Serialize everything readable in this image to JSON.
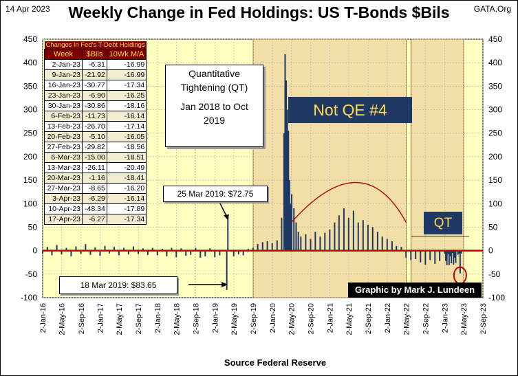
{
  "header": {
    "date": "14 Apr 2023",
    "site": "GATA.Org",
    "title": "Weekly Change in Fed Holdings:  US T-Bonds $Bils"
  },
  "source": "Source  Federal Reserve",
  "table": {
    "caption": "Changes in Fed's T-Debt Holdings",
    "headers": [
      "Week",
      "$Bils",
      "10Wk M/A"
    ],
    "rows": [
      [
        "2-Jan-23",
        "-6.31",
        "-16.99"
      ],
      [
        "9-Jan-23",
        "-21.92",
        "-16.99"
      ],
      [
        "16-Jan-23",
        "-30.77",
        "-17.34"
      ],
      [
        "23-Jan-23",
        "-6.90",
        "-16.25"
      ],
      [
        "30-Jan-23",
        "-30.86",
        "-18.16"
      ],
      [
        "6-Feb-23",
        "-11.73",
        "-16.14"
      ],
      [
        "13-Feb-23",
        "-26.70",
        "-17.14"
      ],
      [
        "20-Feb-23",
        "-5.10",
        "-16.05"
      ],
      [
        "27-Feb-23",
        "-29.82",
        "-18.56"
      ],
      [
        "6-Mar-23",
        "-15.00",
        "-18.51"
      ],
      [
        "13-Mar-23",
        "-26.11",
        "-20.49"
      ],
      [
        "20-Mar-23",
        "-1.16",
        "-18.41"
      ],
      [
        "27-Mar-23",
        "-8.65",
        "-16.20"
      ],
      [
        "3-Apr-23",
        "-6.29",
        "-16.14"
      ],
      [
        "10-Apr-23",
        "-48.34",
        "-17.89"
      ],
      [
        "17-Apr-23",
        "-6.27",
        "-17.34"
      ]
    ]
  },
  "annotations": {
    "qt_box": [
      "Quantitative",
      "Tightening (QT)",
      "Jan 2018 to Oct",
      "2019"
    ],
    "not_qe": "Not QE #4",
    "qt": "QT",
    "peak_2019": "25 Mar 2019:  $72.75",
    "low_2019": "18 Mar 2019:  $83.65",
    "credit": "Graphic by Mark J. Lundeen"
  },
  "colors": {
    "plot_background": "#ffffc0",
    "shaded_region": "#f2dfa8",
    "bars": "#1f3864",
    "zero_line": "#c00000",
    "trend_arc": "#b01010",
    "banner": "#1f3864",
    "banner_text": "#ffd84d",
    "table_header": "#7a0000"
  },
  "chart_data": {
    "type": "bar",
    "title": "Weekly Change in Fed Holdings:  US T-Bonds $Bils",
    "ylabel": "",
    "xlabel": "",
    "ylim": [
      -100,
      450
    ],
    "yticks": [
      -100,
      -50,
      0,
      50,
      100,
      150,
      200,
      250,
      300,
      350,
      400,
      450
    ],
    "xrange": [
      "2016-01-02",
      "2023-09-02"
    ],
    "xticks": [
      "2-Jan-16",
      "2-May-16",
      "2-Sep-16",
      "2-Jan-17",
      "2-May-17",
      "2-Sep-17",
      "2-Jan-18",
      "2-May-18",
      "2-Sep-18",
      "2-Jan-19",
      "2-May-19",
      "2-Sep-19",
      "2-Jan-20",
      "2-May-20",
      "2-Sep-20",
      "2-Jan-21",
      "2-May-21",
      "2-Sep-21",
      "2-Jan-22",
      "2-May-22",
      "2-Sep-22",
      "2-Jan-23",
      "2-May-23",
      "2-Sep-23"
    ],
    "grid": true,
    "shaded_periods": [
      {
        "start": "2019-09-02",
        "end": "2022-05-02"
      },
      {
        "start": "2022-06-02",
        "end": "2023-05-02"
      }
    ],
    "series": [
      {
        "values": [
          {
            "x": "2016-01-02",
            "y": -6
          },
          {
            "x": "2016-02-01",
            "y": 8
          },
          {
            "x": "2016-03-01",
            "y": -10
          },
          {
            "x": "2016-04-01",
            "y": 12
          },
          {
            "x": "2016-05-01",
            "y": -8
          },
          {
            "x": "2016-06-01",
            "y": 6
          },
          {
            "x": "2016-07-01",
            "y": -12
          },
          {
            "x": "2016-08-01",
            "y": 9
          },
          {
            "x": "2016-09-01",
            "y": -7
          },
          {
            "x": "2016-10-01",
            "y": 14
          },
          {
            "x": "2016-11-01",
            "y": -9
          },
          {
            "x": "2016-12-01",
            "y": 7
          },
          {
            "x": "2017-01-01",
            "y": -11
          },
          {
            "x": "2017-02-01",
            "y": 10
          },
          {
            "x": "2017-03-01",
            "y": -6
          },
          {
            "x": "2017-04-01",
            "y": 8
          },
          {
            "x": "2017-05-01",
            "y": -10
          },
          {
            "x": "2017-06-01",
            "y": 6
          },
          {
            "x": "2017-07-01",
            "y": -8
          },
          {
            "x": "2017-08-01",
            "y": 9
          },
          {
            "x": "2017-09-01",
            "y": -7
          },
          {
            "x": "2017-10-01",
            "y": 5
          },
          {
            "x": "2017-11-01",
            "y": -9
          },
          {
            "x": "2017-12-01",
            "y": 6
          },
          {
            "x": "2018-01-01",
            "y": -10
          },
          {
            "x": "2018-02-01",
            "y": 4
          },
          {
            "x": "2018-03-01",
            "y": -12
          },
          {
            "x": "2018-04-01",
            "y": 6
          },
          {
            "x": "2018-05-01",
            "y": -14
          },
          {
            "x": "2018-06-01",
            "y": 5
          },
          {
            "x": "2018-07-01",
            "y": -11
          },
          {
            "x": "2018-08-01",
            "y": -9
          },
          {
            "x": "2018-09-01",
            "y": 6
          },
          {
            "x": "2018-10-01",
            "y": -15
          },
          {
            "x": "2018-11-01",
            "y": -12
          },
          {
            "x": "2018-12-01",
            "y": 5
          },
          {
            "x": "2019-01-01",
            "y": -14
          },
          {
            "x": "2019-02-01",
            "y": -10
          },
          {
            "x": "2019-03-18",
            "y": -83.65
          },
          {
            "x": "2019-03-25",
            "y": 72.75
          },
          {
            "x": "2019-05-01",
            "y": -12
          },
          {
            "x": "2019-06-01",
            "y": -8
          },
          {
            "x": "2019-07-01",
            "y": -10
          },
          {
            "x": "2019-08-01",
            "y": 4
          },
          {
            "x": "2019-09-01",
            "y": 6
          },
          {
            "x": "2019-10-01",
            "y": 14
          },
          {
            "x": "2019-11-01",
            "y": 18
          },
          {
            "x": "2019-12-01",
            "y": 20
          },
          {
            "x": "2020-01-01",
            "y": 16
          },
          {
            "x": "2020-02-01",
            "y": 22
          },
          {
            "x": "2020-03-01",
            "y": 70
          },
          {
            "x": "2020-03-16",
            "y": 250
          },
          {
            "x": "2020-03-23",
            "y": 418
          },
          {
            "x": "2020-03-30",
            "y": 362
          },
          {
            "x": "2020-04-06",
            "y": 300
          },
          {
            "x": "2020-04-13",
            "y": 255
          },
          {
            "x": "2020-04-20",
            "y": 150
          },
          {
            "x": "2020-04-27",
            "y": 100
          },
          {
            "x": "2020-05-04",
            "y": 120
          },
          {
            "x": "2020-05-18",
            "y": 90
          },
          {
            "x": "2020-06-01",
            "y": 60
          },
          {
            "x": "2020-06-15",
            "y": 40
          },
          {
            "x": "2020-07-01",
            "y": 30
          },
          {
            "x": "2020-08-01",
            "y": 35
          },
          {
            "x": "2020-09-01",
            "y": 25
          },
          {
            "x": "2020-10-01",
            "y": 40
          },
          {
            "x": "2020-11-01",
            "y": 30
          },
          {
            "x": "2020-12-01",
            "y": 38
          },
          {
            "x": "2021-01-01",
            "y": 45
          },
          {
            "x": "2021-02-01",
            "y": 60
          },
          {
            "x": "2021-03-01",
            "y": 75
          },
          {
            "x": "2021-04-01",
            "y": 90
          },
          {
            "x": "2021-05-01",
            "y": 70
          },
          {
            "x": "2021-06-01",
            "y": 85
          },
          {
            "x": "2021-07-01",
            "y": 60
          },
          {
            "x": "2021-08-01",
            "y": 65
          },
          {
            "x": "2021-09-01",
            "y": 55
          },
          {
            "x": "2021-10-01",
            "y": 50
          },
          {
            "x": "2021-11-01",
            "y": 40
          },
          {
            "x": "2021-12-01",
            "y": 30
          },
          {
            "x": "2022-01-01",
            "y": 25
          },
          {
            "x": "2022-02-01",
            "y": 20
          },
          {
            "x": "2022-03-01",
            "y": 10
          },
          {
            "x": "2022-04-01",
            "y": 8
          },
          {
            "x": "2022-05-01",
            "y": -15
          },
          {
            "x": "2022-06-01",
            "y": -20
          },
          {
            "x": "2022-07-01",
            "y": -18
          },
          {
            "x": "2022-08-01",
            "y": -25
          },
          {
            "x": "2022-09-01",
            "y": -30
          },
          {
            "x": "2022-10-01",
            "y": -20
          },
          {
            "x": "2022-11-01",
            "y": -28
          },
          {
            "x": "2022-12-01",
            "y": -22
          },
          {
            "x": "2023-01-02",
            "y": -6.31
          },
          {
            "x": "2023-01-09",
            "y": -21.92
          },
          {
            "x": "2023-01-16",
            "y": -30.77
          },
          {
            "x": "2023-01-23",
            "y": -6.9
          },
          {
            "x": "2023-01-30",
            "y": -30.86
          },
          {
            "x": "2023-02-06",
            "y": -11.73
          },
          {
            "x": "2023-02-13",
            "y": -26.7
          },
          {
            "x": "2023-02-20",
            "y": -5.1
          },
          {
            "x": "2023-02-27",
            "y": -29.82
          },
          {
            "x": "2023-03-06",
            "y": -15.0
          },
          {
            "x": "2023-03-13",
            "y": -26.11
          },
          {
            "x": "2023-03-20",
            "y": -1.16
          },
          {
            "x": "2023-03-27",
            "y": -8.65
          },
          {
            "x": "2023-04-03",
            "y": -6.29
          },
          {
            "x": "2023-04-10",
            "y": -48.34
          },
          {
            "x": "2023-04-17",
            "y": -6.27
          }
        ]
      }
    ],
    "trend_arc": [
      {
        "x": "2020-05-02",
        "y": 60
      },
      {
        "x": "2021-06-15",
        "y": 145
      },
      {
        "x": "2022-05-02",
        "y": 60
      }
    ],
    "highlight": {
      "x": "2023-04-10",
      "y": -48.34
    }
  }
}
